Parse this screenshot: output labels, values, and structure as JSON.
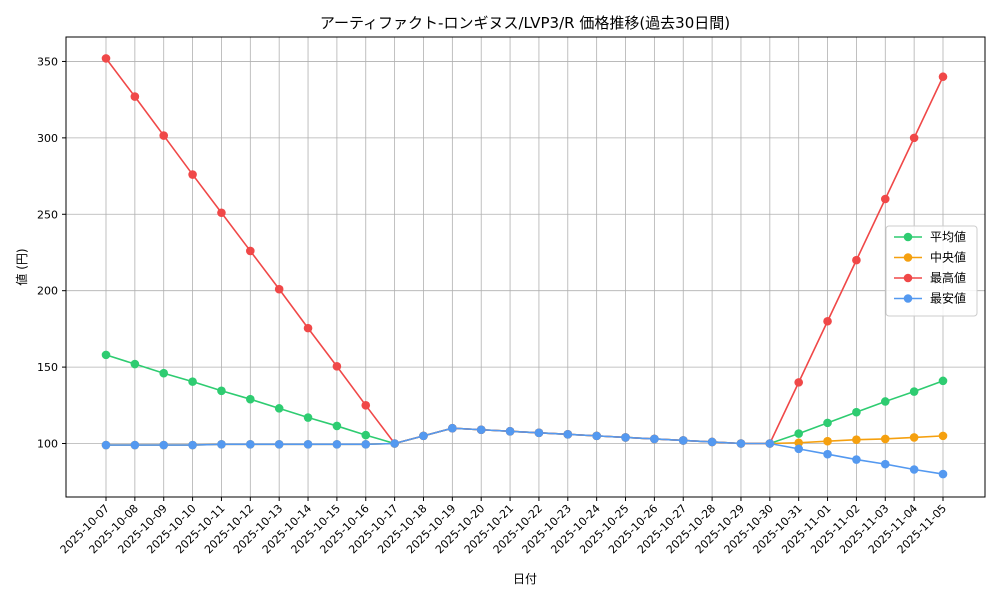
{
  "chart_data": {
    "type": "line",
    "title": "アーティファクト-ロンギヌス/LVP3/R 価格推移(過去30日間)",
    "xlabel": "日付",
    "ylabel": "値 (円)",
    "ylim": [
      65,
      366
    ],
    "yticks": [
      100,
      150,
      200,
      250,
      300,
      350
    ],
    "grid": true,
    "legend_position": "center-right",
    "x": [
      "2025-10-07",
      "2025-10-08",
      "2025-10-09",
      "2025-10-10",
      "2025-10-11",
      "2025-10-12",
      "2025-10-13",
      "2025-10-14",
      "2025-10-15",
      "2025-10-16",
      "2025-10-17",
      "2025-10-18",
      "2025-10-19",
      "2025-10-20",
      "2025-10-21",
      "2025-10-22",
      "2025-10-23",
      "2025-10-24",
      "2025-10-25",
      "2025-10-26",
      "2025-10-27",
      "2025-10-28",
      "2025-10-29",
      "2025-10-30",
      "2025-10-31",
      "2025-11-01",
      "2025-11-02",
      "2025-11-03",
      "2025-11-04",
      "2025-11-05"
    ],
    "series": [
      {
        "name": "平均値",
        "color": "#2ecc71",
        "values": [
          158,
          152,
          146,
          140.5,
          134.5,
          129,
          123,
          117,
          111.5,
          105.5,
          100,
          105,
          110,
          109,
          108,
          107,
          106,
          105,
          104,
          103,
          102,
          101,
          100,
          100,
          106.5,
          113.5,
          120.5,
          127.5,
          134,
          141
        ]
      },
      {
        "name": "中央値",
        "color": "#f5a00f",
        "values": [
          99,
          99,
          99,
          99,
          99.5,
          99.5,
          99.5,
          99.5,
          99.5,
          99.5,
          100,
          105,
          110,
          109,
          108,
          107,
          106,
          105,
          104,
          103,
          102,
          101,
          100,
          100,
          100.5,
          101.5,
          102.5,
          103,
          104,
          105
        ]
      },
      {
        "name": "最高値",
        "color": "#f04848",
        "values": [
          352,
          327,
          301.5,
          276,
          251,
          226,
          201,
          175.5,
          150.5,
          125,
          100,
          105,
          110,
          109,
          108,
          107,
          106,
          105,
          104,
          103,
          102,
          101,
          100,
          100,
          140,
          180,
          220,
          260,
          300,
          340
        ]
      },
      {
        "name": "最安値",
        "color": "#5499f0",
        "values": [
          99,
          99,
          99,
          99,
          99.5,
          99.5,
          99.5,
          99.5,
          99.5,
          99.5,
          100,
          105,
          110,
          109,
          108,
          107,
          106,
          105,
          104,
          103,
          102,
          101,
          100,
          100,
          96.5,
          93,
          89.5,
          86.5,
          83,
          80
        ]
      }
    ]
  }
}
